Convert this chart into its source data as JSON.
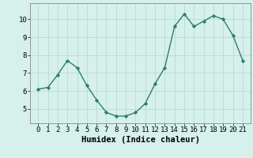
{
  "x": [
    0,
    1,
    2,
    3,
    4,
    5,
    6,
    7,
    8,
    9,
    10,
    11,
    12,
    13,
    14,
    15,
    16,
    17,
    18,
    19,
    20,
    21
  ],
  "y": [
    6.1,
    6.2,
    6.9,
    7.7,
    7.3,
    6.3,
    5.5,
    4.8,
    4.6,
    4.6,
    4.8,
    5.3,
    6.4,
    7.3,
    9.6,
    10.3,
    9.6,
    9.9,
    10.2,
    10.0,
    9.1,
    7.7
  ],
  "line_color": "#2e7d6e",
  "marker": "D",
  "marker_size": 2.2,
  "linewidth": 1.0,
  "bg_color": "#d6f0ec",
  "grid_color": "#b8dbd7",
  "xlabel": "Humidex (Indice chaleur)",
  "ylim": [
    4.2,
    10.9
  ],
  "yticks": [
    5,
    6,
    7,
    8,
    9,
    10
  ],
  "xticks": [
    0,
    1,
    2,
    3,
    4,
    5,
    6,
    7,
    8,
    9,
    10,
    11,
    12,
    13,
    14,
    15,
    16,
    17,
    18,
    19,
    20,
    21
  ],
  "tick_fontsize": 6.5,
  "xlabel_fontsize": 7.5
}
